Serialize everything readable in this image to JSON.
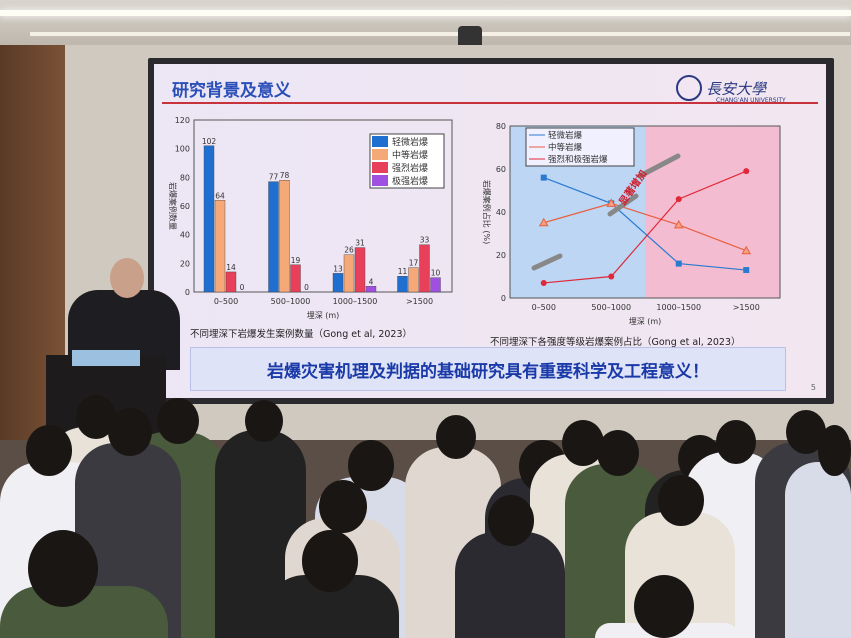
{
  "slide": {
    "title": "研究背景及意义",
    "logo": {
      "name_cn": "長安大學",
      "name_en": "CHANG'AN UNIVERSITY"
    },
    "banner": "岩爆灾害机理及判据的基础研究具有重要科学及工程意义！",
    "page_number": "5",
    "left_caption": "不同埋深下岩爆发生案例数量（Gong et al, 2023）",
    "right_caption": "不同埋深下各强度等级岩爆案例占比（Gong et al, 2023）"
  },
  "colors": {
    "title": "#2a4fb8",
    "accent_red": "#c8323a"
  },
  "chart_data": [
    {
      "type": "bar",
      "categories": [
        "0–500",
        "500–1000",
        "1000–1500",
        ">1500"
      ],
      "series": [
        {
          "name": "轻微岩爆",
          "color": "#1f6fd0",
          "values": [
            102,
            77,
            13,
            11
          ]
        },
        {
          "name": "中等岩爆",
          "color": "#f5a878",
          "values": [
            64,
            78,
            26,
            17
          ]
        },
        {
          "name": "强烈岩爆",
          "color": "#e8405a",
          "values": [
            14,
            19,
            31,
            33
          ]
        },
        {
          "name": "极强岩爆",
          "color": "#a050e0",
          "values": [
            0,
            0,
            4,
            10
          ]
        }
      ],
      "xlabel": "埋深 (m)",
      "ylabel": "岩爆案例数量",
      "ylim": [
        0,
        120
      ],
      "yticks": [
        0,
        20,
        40,
        60,
        80,
        100,
        120
      ],
      "legend": "top-right"
    },
    {
      "type": "line",
      "categories": [
        "0–500",
        "500–1000",
        "1000–1500",
        ">1500"
      ],
      "series": [
        {
          "name": "轻微岩爆",
          "color": "#2a7ad0",
          "marker": "square",
          "values": [
            56,
            44,
            16,
            13
          ]
        },
        {
          "name": "中等岩爆",
          "color": "#e86040",
          "marker": "triangle",
          "values": [
            35,
            44,
            34,
            22
          ]
        },
        {
          "name": "强烈和极强岩爆",
          "color": "#e02838",
          "marker": "circle",
          "values": [
            7,
            10,
            46,
            59
          ]
        }
      ],
      "annotation": "显著增加",
      "xlabel": "埋深 (m)",
      "ylabel": "岩爆案例占比 (%)",
      "ylim": [
        0,
        80
      ],
      "yticks": [
        0,
        20,
        40,
        60,
        80
      ],
      "legend": "top-left",
      "background_regions": [
        "#bcd6f4",
        "#f4bcd0"
      ]
    }
  ]
}
